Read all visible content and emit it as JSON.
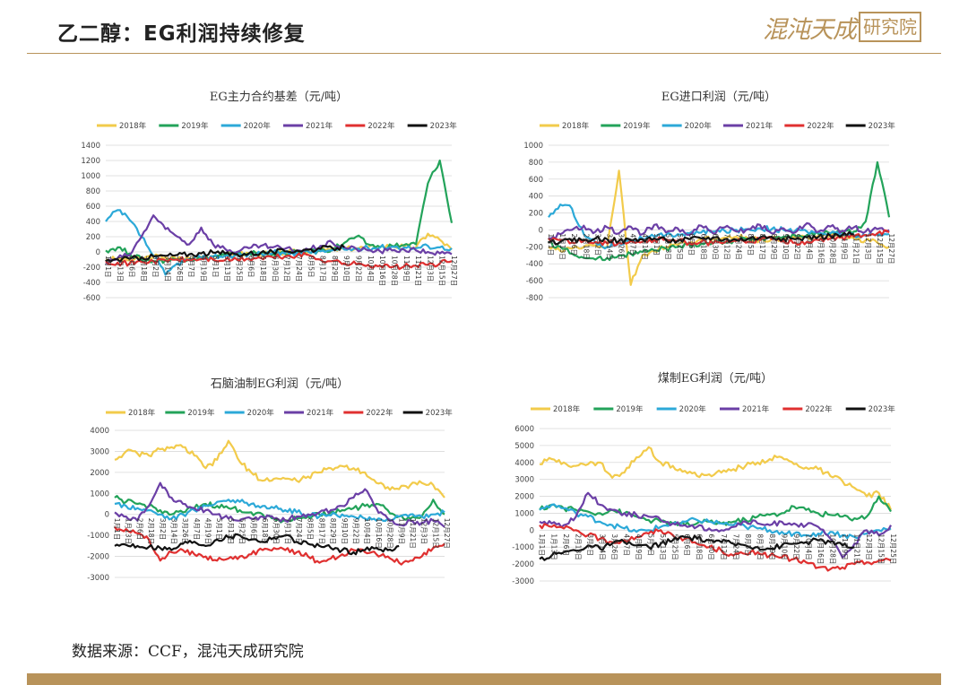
{
  "header": {
    "title": "乙二醇：EG利润持续修复",
    "logo_script": "混沌天成",
    "logo_box": "研究院"
  },
  "source": "数据来源：CCF，混沌天成研究院",
  "colors": {
    "2018年": "#f2cb4b",
    "2019年": "#23a35a",
    "2020年": "#2ca9d8",
    "2021年": "#6b3fa6",
    "2022年": "#e03030",
    "2023年": "#111111",
    "accent": "#b8935a"
  },
  "chart_data": [
    {
      "id": "c1",
      "type": "line",
      "title": "EG主力合约基差（元/吨）",
      "ylim": [
        -600,
        1400
      ],
      "yticks": [
        -600,
        -400,
        -200,
        0,
        200,
        400,
        600,
        800,
        1000,
        1200,
        1400
      ],
      "xlabels": [
        "1月1日",
        "1月13日",
        "2月6日",
        "2月18日",
        "3月2日",
        "3月14日",
        "3月26日",
        "4月7日",
        "4月19日",
        "5月1日",
        "5月13日",
        "5月25日",
        "6月6日",
        "6月18日",
        "6月30日",
        "7月12日",
        "7月24日",
        "8月5日",
        "8月17日",
        "8月29日",
        "9月10日",
        "9月22日",
        "10月4日",
        "10月16日",
        "10月28日",
        "11月9日",
        "11月21日",
        "12月3日",
        "12月15日",
        "12月27日"
      ],
      "legend": [
        "2018年",
        "2019年",
        "2020年",
        "2021年",
        "2022年",
        "2023年"
      ],
      "series": [
        {
          "name": "2018年",
          "values": [
            -100,
            -90,
            -110,
            -80,
            -60,
            -70,
            -90,
            -80,
            -60,
            -50,
            -40,
            -30,
            -20,
            -30,
            -20,
            -10,
            0,
            10,
            20,
            30,
            40,
            50,
            60,
            70,
            80,
            70,
            60,
            240,
            160,
            30
          ]
        },
        {
          "name": "2019年",
          "values": [
            20,
            60,
            -20,
            -100,
            -120,
            -110,
            -100,
            -90,
            -80,
            -60,
            -40,
            -30,
            -20,
            -10,
            -30,
            -20,
            -10,
            0,
            10,
            40,
            120,
            200,
            100,
            60,
            80,
            90,
            100,
            900,
            1200,
            380
          ]
        },
        {
          "name": "2020年",
          "values": [
            400,
            550,
            420,
            200,
            -50,
            -300,
            -150,
            -100,
            -80,
            -60,
            -50,
            -40,
            -30,
            -20,
            -10,
            -20,
            -10,
            0,
            10,
            20,
            30,
            40,
            50,
            60,
            70,
            60,
            50,
            80,
            60,
            50
          ]
        },
        {
          "name": "2021年",
          "values": [
            -150,
            -80,
            -40,
            200,
            480,
            300,
            200,
            100,
            320,
            100,
            40,
            0,
            50,
            80,
            60,
            40,
            20,
            30,
            80,
            120,
            60,
            40,
            20,
            10,
            20,
            30,
            20,
            0,
            -20,
            -30
          ]
        },
        {
          "name": "2022年",
          "values": [
            -120,
            -140,
            -150,
            -130,
            -120,
            -110,
            -100,
            -110,
            -90,
            -100,
            -110,
            -100,
            -90,
            -80,
            -70,
            -60,
            -50,
            -40,
            -100,
            -120,
            -150,
            -160,
            -170,
            -180,
            -200,
            -190,
            -180,
            -170,
            -150,
            -120
          ]
        },
        {
          "name": "2023年",
          "values": [
            -120,
            -100,
            -90,
            -70,
            -60,
            -50,
            -40,
            -30,
            -20,
            -10,
            -20,
            -30,
            -20,
            -10,
            0,
            10,
            20,
            30,
            40,
            50,
            60,
            null,
            null,
            null,
            null,
            null,
            null,
            null,
            null,
            null
          ]
        }
      ]
    },
    {
      "id": "c2",
      "type": "line",
      "title": "EG进口利润（元/吨）",
      "ylim": [
        -800,
        1000
      ],
      "yticks": [
        -800,
        -600,
        -400,
        -200,
        0,
        200,
        400,
        600,
        800,
        1000
      ],
      "xlabels": [
        "1月1日",
        "1月13日",
        "2月6日",
        "2月18日",
        "3月2日",
        "3月14日",
        "3月26日",
        "4月7日",
        "4月19日",
        "5月1日",
        "5月13日",
        "5月25日",
        "6月6日",
        "6月18日",
        "6月30日",
        "7月12日",
        "7月24日",
        "8月5日",
        "8月17日",
        "8月29日",
        "9月10日",
        "9月22日",
        "10月4日",
        "10月16日",
        "10月28日",
        "11月9日",
        "11月21日",
        "12月3日",
        "12月15日",
        "12月27日"
      ],
      "legend": [
        "2018年",
        "2019年",
        "2020年",
        "2021年",
        "2022年",
        "2023年"
      ],
      "series": [
        {
          "name": "2018年",
          "values": [
            -200,
            -250,
            -220,
            -200,
            -180,
            -200,
            700,
            -650,
            -300,
            -250,
            -200,
            -180,
            -150,
            -120,
            -100,
            -90,
            -80,
            -100,
            -120,
            -110,
            -100,
            -90,
            -80,
            -70,
            -60,
            -80,
            -100,
            -120,
            -150,
            -200
          ]
        },
        {
          "name": "2019年",
          "values": [
            -150,
            -200,
            -280,
            -330,
            -350,
            -330,
            -300,
            -280,
            -260,
            -240,
            -220,
            -200,
            -180,
            -160,
            -150,
            -140,
            -120,
            -110,
            -100,
            -90,
            -80,
            -70,
            -60,
            -50,
            -40,
            -30,
            -20,
            100,
            800,
            150
          ]
        },
        {
          "name": "2020年",
          "values": [
            150,
            300,
            250,
            -50,
            -150,
            -200,
            -150,
            -120,
            -100,
            -80,
            -60,
            -50,
            -40,
            -30,
            -20,
            -10,
            0,
            10,
            20,
            10,
            0,
            -10,
            -20,
            -30,
            -40,
            -50,
            -60,
            -70,
            -60,
            -50
          ]
        },
        {
          "name": "2021年",
          "values": [
            -100,
            -50,
            0,
            50,
            -20,
            30,
            -40,
            40,
            -50,
            60,
            -30,
            20,
            -60,
            50,
            -40,
            30,
            -20,
            10,
            60,
            -40,
            20,
            -30,
            80,
            -20,
            40,
            -10,
            30,
            -20,
            10,
            0
          ]
        },
        {
          "name": "2022年",
          "values": [
            -100,
            -120,
            -150,
            -130,
            -140,
            -160,
            -150,
            -130,
            -140,
            -120,
            -110,
            -130,
            -150,
            -140,
            -160,
            -150,
            -130,
            -140,
            -120,
            -110,
            -130,
            -150,
            -140,
            -120,
            -100,
            -90,
            -80,
            -60,
            -40,
            -30
          ]
        },
        {
          "name": "2023年",
          "values": [
            -150,
            -140,
            -130,
            -120,
            -100,
            -110,
            -130,
            -120,
            -110,
            -100,
            -120,
            -130,
            -110,
            -100,
            -90,
            -110,
            -120,
            -100,
            -90,
            -80,
            -100,
            -110,
            -90,
            -80,
            -70,
            -60,
            -50,
            null,
            null,
            null
          ]
        }
      ]
    },
    {
      "id": "c3",
      "type": "line",
      "title": "石脑油制EG利润（元/吨）",
      "ylim": [
        -3000,
        4000
      ],
      "yticks": [
        -3000,
        -2000,
        -1000,
        0,
        1000,
        2000,
        3000,
        4000
      ],
      "xlabels": [
        "1月1日",
        "1月13日",
        "2月6日",
        "2月18日",
        "3月2日",
        "3月14日",
        "3月26日",
        "4月7日",
        "4月19日",
        "5月1日",
        "5月13日",
        "5月25日",
        "6月6日",
        "6月18日",
        "6月30日",
        "7月12日",
        "7月24日",
        "8月5日",
        "8月17日",
        "8月29日",
        "9月10日",
        "9月22日",
        "10月4日",
        "10月16日",
        "10月28日",
        "11月9日",
        "11月21日",
        "12月3日",
        "12月15日",
        "12月27日"
      ],
      "legend": [
        "2018年",
        "2019年",
        "2020年",
        "2021年",
        "2022年",
        "2023年"
      ],
      "series": [
        {
          "name": "2018年",
          "values": [
            2600,
            3000,
            2900,
            2800,
            3100,
            3200,
            3200,
            2800,
            2200,
            2600,
            3500,
            2500,
            2000,
            1600,
            1700,
            1700,
            1600,
            1800,
            2000,
            2200,
            2300,
            2200,
            2000,
            1500,
            1300,
            1200,
            1400,
            1500,
            1400,
            800
          ]
        },
        {
          "name": "2019年",
          "values": [
            800,
            600,
            500,
            400,
            200,
            0,
            100,
            300,
            500,
            400,
            300,
            200,
            100,
            0,
            -200,
            -300,
            -200,
            -100,
            0,
            100,
            200,
            300,
            400,
            500,
            200,
            -100,
            -200,
            -100,
            700,
            0
          ]
        },
        {
          "name": "2020年",
          "values": [
            500,
            400,
            300,
            200,
            0,
            -200,
            0,
            200,
            400,
            600,
            700,
            600,
            500,
            400,
            300,
            200,
            100,
            0,
            -100,
            -50,
            0,
            -100,
            -200,
            -300,
            -200,
            -100,
            0,
            -100,
            0,
            100
          ]
        },
        {
          "name": "2021年",
          "values": [
            100,
            -100,
            -300,
            400,
            1500,
            800,
            500,
            300,
            200,
            0,
            -200,
            -300,
            -200,
            -100,
            -200,
            -300,
            -100,
            0,
            100,
            200,
            400,
            800,
            1200,
            300,
            -200,
            -500,
            -300,
            -400,
            -300,
            -600
          ]
        },
        {
          "name": "2022年",
          "values": [
            -600,
            -700,
            -900,
            -1200,
            -2200,
            -1800,
            -1700,
            -1900,
            -2000,
            -2200,
            -2100,
            -2000,
            -1900,
            -1700,
            -1600,
            -1700,
            -1800,
            -2000,
            -2300,
            -2100,
            -1900,
            -1700,
            -1800,
            -1900,
            -2000,
            -2300,
            -2200,
            -2000,
            -1600,
            -1400
          ]
        },
        {
          "name": "2023年",
          "values": [
            -1500,
            -1450,
            -1500,
            -1550,
            -1600,
            -1700,
            -1400,
            -1300,
            -1500,
            -1200,
            -1100,
            -1000,
            -1200,
            -1300,
            -1100,
            -1000,
            -1300,
            -1400,
            -1500,
            -1600,
            -1700,
            -1800,
            -1700,
            -1600,
            -1700,
            -1500,
            null,
            null,
            null,
            null
          ]
        }
      ]
    },
    {
      "id": "c4",
      "type": "line",
      "title": "煤制EG利润（元/吨）",
      "ylim": [
        -3000,
        6000
      ],
      "yticks": [
        -3000,
        -2000,
        -1000,
        0,
        1000,
        2000,
        3000,
        4000,
        5000,
        6000
      ],
      "xlabels": [
        "1月1日",
        "1月13日",
        "2月6日",
        "2月18日",
        "3月2日",
        "3月14日",
        "3月26日",
        "4月7日",
        "4月19日",
        "5月1日",
        "5月13日",
        "5月25日",
        "6月6日",
        "6月18日",
        "6月30日",
        "7月12日",
        "7月24日",
        "8月5日",
        "8月17日",
        "8月29日",
        "9月10日",
        "9月22日",
        "10月4日",
        "10月16日",
        "10月28日",
        "11月9日",
        "11月21日",
        "12月3日",
        "12月15日",
        "12月25日"
      ],
      "legend": [
        "2018年",
        "2019年",
        "2020年",
        "2021年",
        "2022年",
        "2023年"
      ],
      "series": [
        {
          "name": "2018年",
          "values": [
            3900,
            4200,
            4000,
            3800,
            3900,
            4000,
            3100,
            3400,
            4300,
            4900,
            4000,
            3800,
            3500,
            3200,
            3300,
            3400,
            3600,
            3800,
            4000,
            4200,
            4300,
            3900,
            3700,
            3600,
            3200,
            2900,
            2500,
            2000,
            2200,
            1200
          ]
        },
        {
          "name": "2019年",
          "values": [
            1200,
            1500,
            1300,
            1200,
            1100,
            1000,
            1200,
            1000,
            800,
            600,
            500,
            400,
            300,
            400,
            500,
            400,
            500,
            600,
            800,
            900,
            1000,
            1400,
            1200,
            1000,
            900,
            800,
            700,
            800,
            2000,
            1100
          ]
        },
        {
          "name": "2020年",
          "values": [
            1200,
            1500,
            1300,
            1000,
            800,
            500,
            300,
            100,
            -100,
            0,
            200,
            400,
            500,
            600,
            500,
            400,
            300,
            200,
            100,
            0,
            -100,
            -200,
            -300,
            -200,
            -100,
            -300,
            -400,
            -200,
            0,
            100
          ]
        },
        {
          "name": "2021年",
          "values": [
            500,
            400,
            300,
            800,
            2200,
            1500,
            1200,
            1000,
            900,
            800,
            600,
            400,
            300,
            200,
            100,
            0,
            200,
            500,
            400,
            300,
            500,
            400,
            300,
            200,
            -500,
            -1600,
            -800,
            0,
            -300,
            300
          ]
        },
        {
          "name": "2022年",
          "values": [
            300,
            200,
            100,
            0,
            -300,
            -500,
            -700,
            -600,
            -400,
            -200,
            0,
            -300,
            -500,
            -800,
            -1000,
            -1200,
            -1500,
            -1400,
            -1300,
            -1500,
            -1600,
            -1700,
            -1900,
            -2200,
            -2300,
            -2200,
            -2000,
            -1900,
            -1800,
            -1800
          ]
        },
        {
          "name": "2023年",
          "values": [
            -1700,
            -1500,
            -1300,
            -1200,
            -900,
            -1100,
            -800,
            -700,
            -900,
            -1000,
            -800,
            -600,
            -400,
            -500,
            -600,
            -700,
            -800,
            -900,
            -1000,
            -1100,
            -900,
            -800,
            -700,
            -600,
            -700,
            -900,
            -1000,
            null,
            null,
            null
          ]
        }
      ]
    }
  ]
}
